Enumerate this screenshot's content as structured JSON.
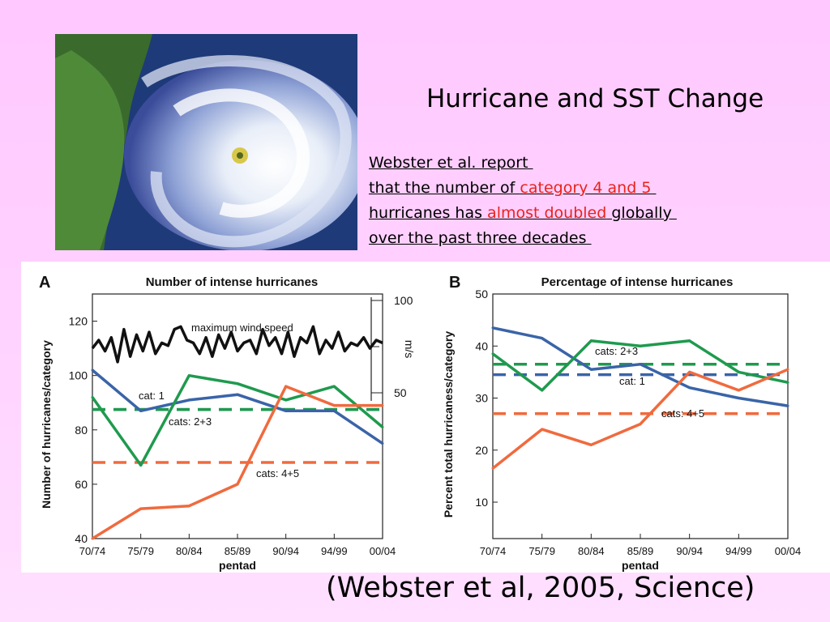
{
  "slide": {
    "title": "Hurricane and SST Change",
    "summary": {
      "line1": "Webster et al. report ",
      "line2_a": "that the number of ",
      "line2_b": "category 4 and 5",
      "line2_c": " ",
      "line3_a": "hurricanes has ",
      "line3_b": "almost doubled",
      "line3_c": " globally ",
      "line4": "over the past three decades "
    },
    "citation": "(Webster et al, 2005, Science)",
    "photo_subject": "satellite image of hurricane near Florida coast",
    "accent_color": "#e8231a"
  },
  "chart_data": [
    {
      "panel_letter": "A",
      "title": "Number of intense hurricanes",
      "type": "line",
      "xlabel": "pentad",
      "ylabel": "Number of hurricanes/category",
      "categories": [
        "70/74",
        "75/79",
        "80/84",
        "85/89",
        "90/94",
        "94/99",
        "00/04"
      ],
      "ylim": [
        40,
        130
      ],
      "yticks": [
        40,
        60,
        80,
        100,
        120
      ],
      "y2label": "m/s",
      "y2ticks": [
        50,
        100
      ],
      "series": [
        {
          "name": "cat: 1",
          "color": "#3a64a8",
          "values": [
            102,
            87,
            91,
            93,
            87,
            87,
            75
          ]
        },
        {
          "name": "cats: 2+3",
          "color": "#1f9a4e",
          "values": [
            92,
            67,
            100,
            97,
            91,
            96,
            81
          ]
        },
        {
          "name": "cats: 4+5",
          "color": "#f06a3e",
          "values": [
            40,
            51,
            52,
            60,
            96,
            89,
            89
          ]
        }
      ],
      "max_wind": {
        "name": "maximum wind speed",
        "color": "#111111",
        "values": [
          110,
          113,
          109,
          114,
          105,
          117,
          107,
          115,
          109,
          116,
          108,
          112,
          111,
          117,
          118,
          113,
          112,
          108,
          114,
          107,
          115,
          110,
          116,
          109,
          112,
          113,
          108,
          117,
          111,
          114,
          108,
          116,
          107,
          114,
          112,
          118,
          108,
          113,
          110,
          116,
          109,
          112,
          111,
          114,
          110,
          113,
          112
        ]
      },
      "means": [
        {
          "name": "cat: 1",
          "color": "#3a64a8",
          "value": 87.5
        },
        {
          "name": "cats: 2+3",
          "color": "#1f9a4e",
          "value": 87.5
        },
        {
          "name": "cats: 4+5",
          "color": "#f06a3e",
          "value": 68
        }
      ]
    },
    {
      "panel_letter": "B",
      "title": "Percentage of intense hurricanes",
      "type": "line",
      "xlabel": "pentad",
      "ylabel": "Percent  total hurricaness/category",
      "categories": [
        "70/74",
        "75/79",
        "80/84",
        "85/89",
        "90/94",
        "94/99",
        "00/04"
      ],
      "ylim": [
        3,
        50
      ],
      "yticks": [
        10,
        20,
        30,
        40,
        50
      ],
      "series": [
        {
          "name": "cat: 1",
          "color": "#3a64a8",
          "values": [
            43.5,
            41.5,
            35.5,
            36.5,
            32,
            30,
            28.5
          ]
        },
        {
          "name": "cats: 2+3",
          "color": "#1f9a4e",
          "values": [
            38.5,
            31.5,
            41,
            40,
            41,
            35,
            33
          ]
        },
        {
          "name": "cats: 4+5",
          "color": "#f06a3e",
          "values": [
            16.5,
            24,
            21,
            25,
            35,
            31.5,
            35.5
          ]
        }
      ],
      "means": [
        {
          "name": "cat: 1",
          "color": "#3a64a8",
          "value": 34.5
        },
        {
          "name": "cats: 2+3",
          "color": "#1f9a4e",
          "value": 36.5
        },
        {
          "name": "cats: 4+5",
          "color": "#f06a3e",
          "value": 27
        }
      ]
    }
  ]
}
